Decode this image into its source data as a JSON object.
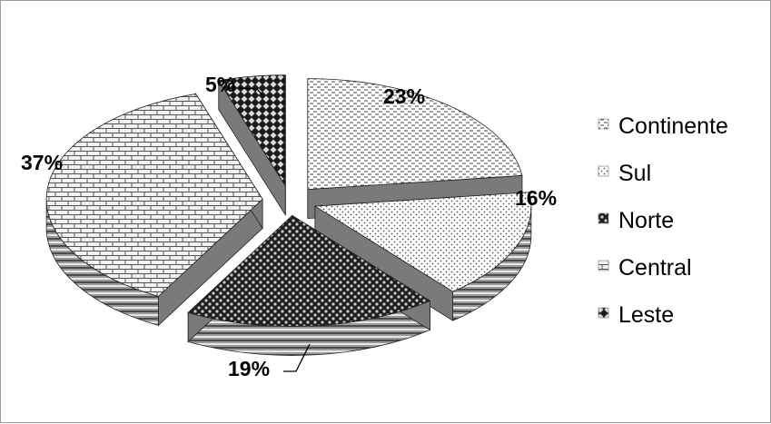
{
  "chart_data": {
    "type": "pie",
    "style": "3d-exploded",
    "legend_position": "right",
    "slices": [
      {
        "name": "Continente",
        "value": 23,
        "label": "23%",
        "pattern": "dashes"
      },
      {
        "name": "Sul",
        "value": 16,
        "label": "16%",
        "pattern": "dots"
      },
      {
        "name": "Norte",
        "value": 19,
        "label": "19%",
        "pattern": "checker"
      },
      {
        "name": "Central",
        "value": 37,
        "label": "37%",
        "pattern": "bricks"
      },
      {
        "name": "Leste",
        "value": 5,
        "label": "5%",
        "pattern": "diamonds"
      }
    ],
    "colors": {
      "ink": "#000000",
      "background": "#ffffff",
      "frame": "#9a9a9a"
    }
  }
}
